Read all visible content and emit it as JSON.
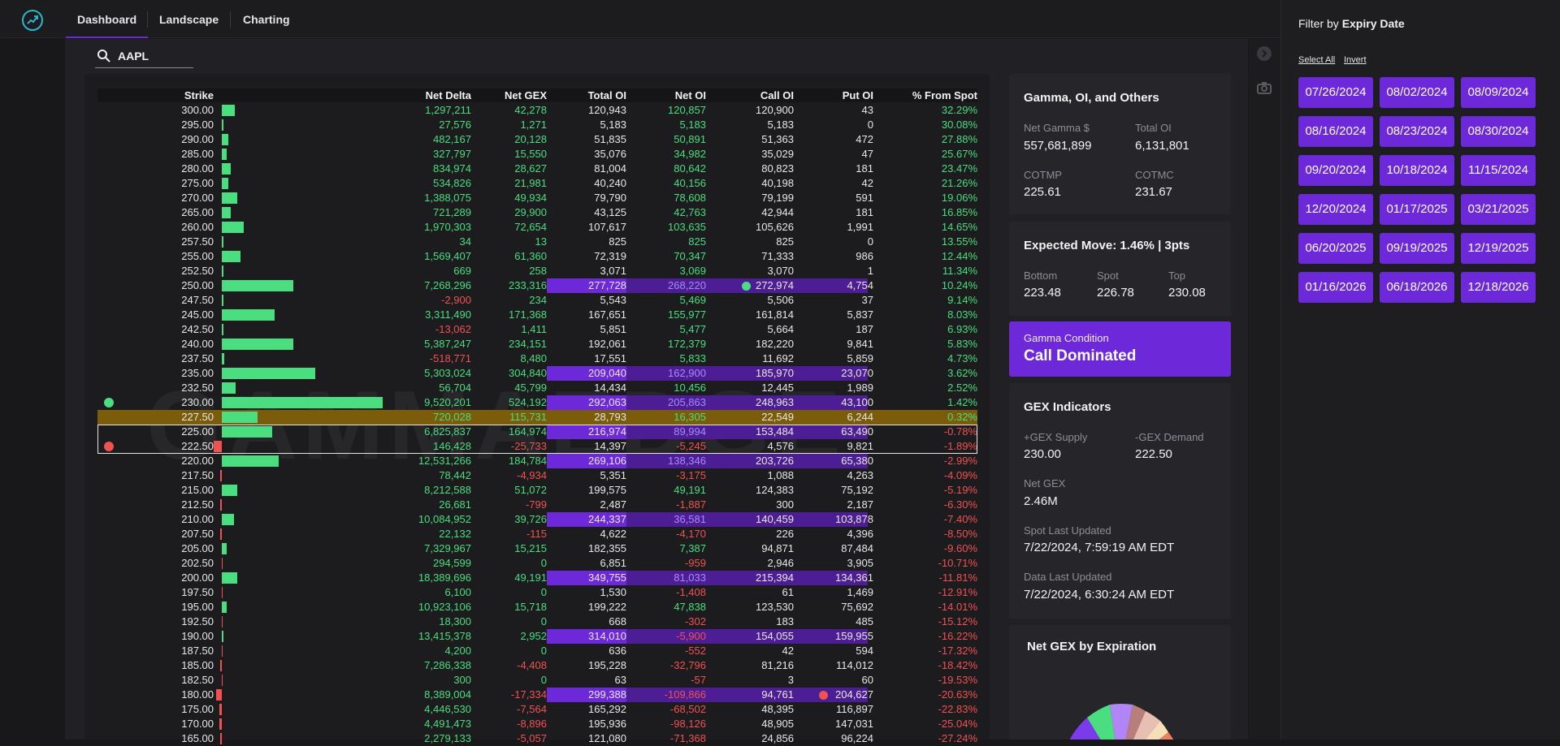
{
  "nav": {
    "tabs": [
      "Dashboard",
      "Landscape",
      "Charting"
    ],
    "active": "Dashboard"
  },
  "search": {
    "value": "AAPL"
  },
  "table": {
    "headers": [
      "Strike",
      "Net Delta",
      "Net GEX",
      "Total OI",
      "Net OI",
      "Call OI",
      "Put OI",
      "% From Spot"
    ],
    "rows": [
      [
        "300.00",
        "1,297,211",
        "42,278",
        "120,943",
        "120,857",
        "120,900",
        "43",
        "32.29%"
      ],
      [
        "295.00",
        "27,576",
        "1,271",
        "5,183",
        "5,183",
        "5,183",
        "0",
        "30.08%"
      ],
      [
        "290.00",
        "482,167",
        "20,128",
        "51,835",
        "50,891",
        "51,363",
        "472",
        "27.88%"
      ],
      [
        "285.00",
        "327,797",
        "15,550",
        "35,076",
        "34,982",
        "35,029",
        "47",
        "25.67%"
      ],
      [
        "280.00",
        "834,974",
        "28,627",
        "81,004",
        "80,642",
        "80,823",
        "181",
        "23.47%"
      ],
      [
        "275.00",
        "534,826",
        "21,981",
        "40,240",
        "40,156",
        "40,198",
        "42",
        "21.26%"
      ],
      [
        "270.00",
        "1,388,075",
        "49,934",
        "79,790",
        "78,608",
        "79,199",
        "591",
        "19.06%"
      ],
      [
        "265.00",
        "721,289",
        "29,900",
        "43,125",
        "42,763",
        "42,944",
        "181",
        "16.85%"
      ],
      [
        "260.00",
        "1,970,303",
        "72,654",
        "107,617",
        "103,635",
        "105,626",
        "1,991",
        "14.65%"
      ],
      [
        "257.50",
        "34",
        "13",
        "825",
        "825",
        "825",
        "0",
        "13.55%"
      ],
      [
        "255.00",
        "1,569,407",
        "61,360",
        "72,319",
        "70,347",
        "71,333",
        "986",
        "12.44%"
      ],
      [
        "252.50",
        "669",
        "258",
        "3,071",
        "3,069",
        "3,070",
        "1",
        "11.34%"
      ],
      [
        "250.00",
        "7,268,296",
        "233,316",
        "277,728",
        "268,220",
        "272,974",
        "4,754",
        "10.24%"
      ],
      [
        "247.50",
        "-2,900",
        "234",
        "5,543",
        "5,469",
        "5,506",
        "37",
        "9.14%"
      ],
      [
        "245.00",
        "3,311,490",
        "171,368",
        "167,651",
        "155,977",
        "161,814",
        "5,837",
        "8.03%"
      ],
      [
        "242.50",
        "-13,062",
        "1,411",
        "5,851",
        "5,477",
        "5,664",
        "187",
        "6.93%"
      ],
      [
        "240.00",
        "5,387,247",
        "234,151",
        "192,061",
        "172,379",
        "182,220",
        "9,841",
        "5.83%"
      ],
      [
        "237.50",
        "-518,771",
        "8,480",
        "17,551",
        "5,833",
        "11,692",
        "5,859",
        "4.73%"
      ],
      [
        "235.00",
        "5,303,024",
        "304,840",
        "209,040",
        "162,900",
        "185,970",
        "23,070",
        "3.62%"
      ],
      [
        "232.50",
        "56,704",
        "45,799",
        "14,434",
        "10,456",
        "12,445",
        "1,989",
        "2.52%"
      ],
      [
        "230.00",
        "9,520,201",
        "524,192",
        "292,063",
        "205,863",
        "248,963",
        "43,100",
        "1.42%"
      ],
      [
        "227.50",
        "720,028",
        "115,731",
        "28,793",
        "16,305",
        "22,549",
        "6,244",
        "0.32%"
      ],
      [
        "225.00",
        "6,825,837",
        "164,974",
        "216,974",
        "89,994",
        "153,484",
        "63,490",
        "-0.78%"
      ],
      [
        "222.50",
        "146,428",
        "-25,733",
        "14,397",
        "-5,245",
        "4,576",
        "9,821",
        "-1.89%"
      ],
      [
        "220.00",
        "12,531,266",
        "184,784",
        "269,106",
        "138,346",
        "203,726",
        "65,380",
        "-2.99%"
      ],
      [
        "217.50",
        "78,442",
        "-4,934",
        "5,351",
        "-3,175",
        "1,088",
        "4,263",
        "-4.09%"
      ],
      [
        "215.00",
        "8,212,588",
        "51,072",
        "199,575",
        "49,191",
        "124,383",
        "75,192",
        "-5.19%"
      ],
      [
        "212.50",
        "26,681",
        "-799",
        "2,487",
        "-1,887",
        "300",
        "2,187",
        "-6.30%"
      ],
      [
        "210.00",
        "10,084,952",
        "39,726",
        "244,337",
        "36,581",
        "140,459",
        "103,878",
        "-7.40%"
      ],
      [
        "207.50",
        "22,132",
        "-115",
        "4,622",
        "-4,170",
        "226",
        "4,396",
        "-8.50%"
      ],
      [
        "205.00",
        "7,329,967",
        "15,215",
        "182,355",
        "7,387",
        "94,871",
        "87,484",
        "-9.60%"
      ],
      [
        "202.50",
        "294,599",
        "0",
        "6,851",
        "-959",
        "2,946",
        "3,905",
        "-10.71%"
      ],
      [
        "200.00",
        "18,389,696",
        "49,191",
        "349,755",
        "81,033",
        "215,394",
        "134,361",
        "-11.81%"
      ],
      [
        "197.50",
        "6,100",
        "0",
        "1,530",
        "-1,408",
        "61",
        "1,469",
        "-12.91%"
      ],
      [
        "195.00",
        "10,923,106",
        "15,718",
        "199,222",
        "47,838",
        "123,530",
        "75,692",
        "-14.01%"
      ],
      [
        "192.50",
        "18,300",
        "0",
        "668",
        "-302",
        "183",
        "485",
        "-15.12%"
      ],
      [
        "190.00",
        "13,415,378",
        "2,952",
        "314,010",
        "-5,900",
        "154,055",
        "159,955",
        "-16.22%"
      ],
      [
        "187.50",
        "4,200",
        "0",
        "636",
        "-552",
        "42",
        "594",
        "-17.32%"
      ],
      [
        "185.00",
        "7,286,338",
        "-4,408",
        "195,228",
        "-32,796",
        "81,216",
        "114,012",
        "-18.42%"
      ],
      [
        "182.50",
        "300",
        "0",
        "63",
        "-57",
        "3",
        "60",
        "-19.53%"
      ],
      [
        "180.00",
        "8,389,004",
        "-17,334",
        "299,388",
        "-109,866",
        "94,761",
        "204,627",
        "-20.63%"
      ],
      [
        "175.00",
        "4,446,530",
        "-7,564",
        "165,292",
        "-68,502",
        "48,395",
        "116,897",
        "-22.83%"
      ],
      [
        "170.00",
        "4,491,473",
        "-8,896",
        "195,936",
        "-98,126",
        "48,905",
        "147,031",
        "-25.04%"
      ],
      [
        "165.00",
        "2,279,133",
        "-5,057",
        "121,080",
        "-71,368",
        "24,856",
        "96,224",
        "-27.24%"
      ]
    ],
    "gex_bar_values": [
      42278,
      1271,
      20128,
      15550,
      28627,
      21981,
      49934,
      29900,
      72654,
      13,
      61360,
      258,
      233316,
      234,
      171368,
      1411,
      234151,
      8480,
      304840,
      45799,
      524192,
      115731,
      164974,
      -25733,
      184784,
      -4934,
      51072,
      -799,
      39726,
      -115,
      15215,
      0,
      49191,
      0,
      15718,
      0,
      2952,
      0,
      -4408,
      0,
      -17334,
      -7564,
      -8896,
      -5057
    ],
    "spot_row": "227.50",
    "supply_row": "230.00",
    "demand_row": "222.50",
    "max_call_oi_row": "250.00",
    "max_put_oi_row": "180.00",
    "highlight_rows": [
      "250.00",
      "235.00",
      "230.00",
      "225.00",
      "220.00",
      "210.00",
      "200.00",
      "190.00",
      "180.00"
    ],
    "watermark": "GAMMAEDGE"
  },
  "colors": {
    "accent": "#6d28d9",
    "positive": "#4ade80",
    "negative": "#f05252",
    "spot": "#7a5c0a"
  },
  "filter": {
    "title_prefix": "Filter by",
    "title_bold": "Expiry Date",
    "select_all": "Select All",
    "invert": "Invert",
    "dates": [
      "07/26/2024",
      "08/02/2024",
      "08/09/2024",
      "08/16/2024",
      "08/23/2024",
      "08/30/2024",
      "09/20/2024",
      "10/18/2024",
      "11/15/2024",
      "12/20/2024",
      "01/17/2025",
      "03/21/2025",
      "06/20/2025",
      "09/19/2025",
      "12/19/2025",
      "01/16/2026",
      "06/18/2026",
      "12/18/2026"
    ]
  },
  "gamma_card": {
    "title": "Gamma, OI, and Others",
    "net_gamma_label": "Net Gamma $",
    "net_gamma": "557,681,899",
    "total_oi_label": "Total OI",
    "total_oi": "6,131,801",
    "cotmp_label": "COTMP",
    "cotmp": "225.61",
    "cotmc_label": "COTMC",
    "cotmc": "231.67"
  },
  "move_card": {
    "title": "Expected Move: 1.46% | 3pts",
    "bottom_label": "Bottom",
    "bottom": "223.48",
    "spot_label": "Spot",
    "spot": "226.78",
    "top_label": "Top",
    "top": "230.08"
  },
  "condition_card": {
    "label": "Gamma Condition",
    "value": "Call Dominated"
  },
  "gex_card": {
    "title": "GEX Indicators",
    "supply_label": "+GEX Supply",
    "supply": "230.00",
    "demand_label": "-GEX Demand",
    "demand": "222.50",
    "net_gex_label": "Net GEX",
    "net_gex": "2.46M",
    "spot_updated_label": "Spot Last Updated",
    "spot_updated": "7/22/2024, 7:59:19 AM EDT",
    "data_updated_label": "Data Last Updated",
    "data_updated": "7/22/2024, 6:30:24 AM EDT"
  },
  "expiration_card": {
    "title": "Net GEX by Expiration"
  }
}
